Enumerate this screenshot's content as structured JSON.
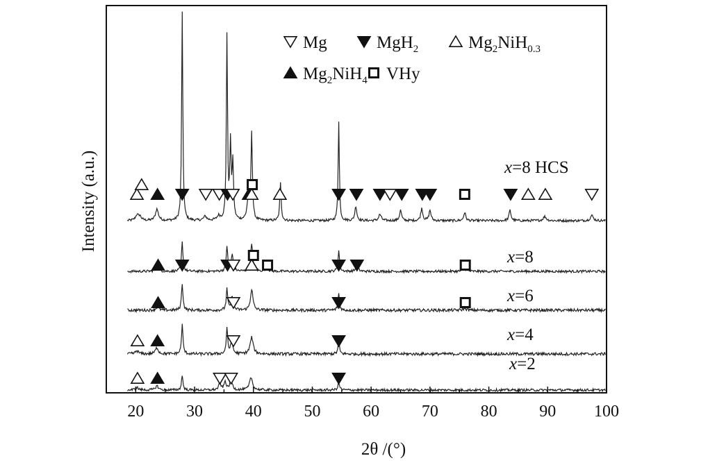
{
  "chart_data": {
    "type": "line",
    "xlabel": "2θ /(°)",
    "ylabel": "Intensity (a.u.)",
    "xlim": [
      15,
      100
    ],
    "xticks": [
      20,
      30,
      40,
      50,
      60,
      70,
      80,
      90,
      100
    ],
    "grid": false,
    "legend": {
      "placement": "top-right",
      "entries": [
        {
          "symbol": "triangle-down-open",
          "label": "Mg"
        },
        {
          "symbol": "triangle-down-filled",
          "label": "MgH",
          "sub": "2"
        },
        {
          "symbol": "triangle-up-open",
          "label": "Mg",
          "sub": "2",
          "label2": "NiH",
          "sub2": "0.3"
        },
        {
          "symbol": "triangle-up-filled",
          "label": "Mg",
          "sub": "2",
          "label2": "NiH",
          "sub2": "4"
        },
        {
          "symbol": "square-open",
          "label": "VHy"
        }
      ]
    },
    "series": [
      {
        "name": "x=8 HCS",
        "prefix": "x",
        "suffix": "=8 HCS",
        "baseline": 0.0,
        "noise": 0.06,
        "peaks": [
          [
            20.2,
            0.25,
            0.3
          ],
          [
            20.7,
            0.2,
            0.3
          ],
          [
            23.6,
            0.55,
            0.3
          ],
          [
            27.9,
            10.0,
            0.12
          ],
          [
            31.8,
            0.2,
            0.3
          ],
          [
            34.1,
            0.2,
            0.3
          ],
          [
            35.5,
            8.8,
            0.12
          ],
          [
            36.1,
            3.5,
            0.14
          ],
          [
            36.5,
            2.6,
            0.14
          ],
          [
            39.1,
            0.9,
            0.25
          ],
          [
            39.7,
            4.2,
            0.14
          ],
          [
            44.6,
            1.8,
            0.14
          ],
          [
            54.5,
            4.8,
            0.12
          ],
          [
            57.4,
            0.7,
            0.2
          ],
          [
            61.5,
            0.3,
            0.25
          ],
          [
            65.0,
            0.5,
            0.2
          ],
          [
            68.6,
            0.6,
            0.2
          ],
          [
            70.0,
            0.5,
            0.2
          ],
          [
            75.9,
            0.4,
            0.2
          ],
          [
            83.6,
            0.5,
            0.2
          ],
          [
            89.5,
            0.2,
            0.3
          ],
          [
            97.5,
            0.25,
            0.3
          ]
        ],
        "markers": [
          {
            "x": 20.2,
            "symbol": "triangle-up-open",
            "row": 0
          },
          {
            "x": 21.0,
            "symbol": "triangle-up-open",
            "row": 1
          },
          {
            "x": 23.7,
            "symbol": "triangle-up-filled",
            "row": 0
          },
          {
            "x": 27.9,
            "symbol": "triangle-down-filled",
            "row": 0
          },
          {
            "x": 31.9,
            "symbol": "triangle-down-open",
            "row": 0
          },
          {
            "x": 34.2,
            "symbol": "triangle-down-open",
            "row": 0
          },
          {
            "x": 35.6,
            "symbol": "triangle-down-filled",
            "row": 0
          },
          {
            "x": 36.5,
            "symbol": "triangle-down-open",
            "row": 0
          },
          {
            "x": 39.2,
            "symbol": "triangle-up-filled",
            "row": 0
          },
          {
            "x": 39.7,
            "symbol": "triangle-up-open",
            "row": 0
          },
          {
            "x": 39.8,
            "symbol": "square-open",
            "row": 1
          },
          {
            "x": 44.5,
            "symbol": "triangle-up-open",
            "row": 0
          },
          {
            "x": 54.5,
            "symbol": "triangle-down-filled",
            "row": 0
          },
          {
            "x": 57.5,
            "symbol": "triangle-down-filled",
            "row": 0
          },
          {
            "x": 61.5,
            "symbol": "triangle-down-filled",
            "row": 0
          },
          {
            "x": 63.2,
            "symbol": "triangle-down-open",
            "row": 0
          },
          {
            "x": 65.2,
            "symbol": "triangle-down-filled",
            "row": 0
          },
          {
            "x": 68.7,
            "symbol": "triangle-down-filled",
            "row": 0
          },
          {
            "x": 70.0,
            "symbol": "triangle-down-filled",
            "row": 0
          },
          {
            "x": 75.9,
            "symbol": "square-open",
            "row": 0
          },
          {
            "x": 83.7,
            "symbol": "triangle-down-filled",
            "row": 0
          },
          {
            "x": 86.7,
            "symbol": "triangle-up-open",
            "row": 0
          },
          {
            "x": 89.6,
            "symbol": "triangle-up-open",
            "row": 0
          },
          {
            "x": 97.5,
            "symbol": "triangle-down-open",
            "row": 0
          }
        ]
      },
      {
        "name": "x=8",
        "prefix": "x",
        "suffix": "=8",
        "baseline": 0.0,
        "noise": 0.06,
        "peaks": [
          [
            23.7,
            0.2,
            0.3
          ],
          [
            27.9,
            1.4,
            0.15
          ],
          [
            35.5,
            1.2,
            0.15
          ],
          [
            36.4,
            0.8,
            0.2
          ],
          [
            39.7,
            1.3,
            0.2
          ],
          [
            42.2,
            0.2,
            0.3
          ],
          [
            54.5,
            1.0,
            0.15
          ],
          [
            57.6,
            0.25,
            0.25
          ],
          [
            75.9,
            0.12,
            0.3
          ]
        ],
        "markers": [
          {
            "x": 23.8,
            "symbol": "triangle-up-filled",
            "row": 0
          },
          {
            "x": 27.9,
            "symbol": "triangle-down-filled",
            "row": 0
          },
          {
            "x": 35.6,
            "symbol": "triangle-down-filled",
            "row": 0
          },
          {
            "x": 36.6,
            "symbol": "triangle-down-open",
            "row": 0
          },
          {
            "x": 39.7,
            "symbol": "triangle-up-open",
            "row": 0
          },
          {
            "x": 40.0,
            "symbol": "square-open",
            "row": 1
          },
          {
            "x": 42.4,
            "symbol": "square-open",
            "row": 0
          },
          {
            "x": 54.5,
            "symbol": "triangle-down-filled",
            "row": 0
          },
          {
            "x": 57.6,
            "symbol": "triangle-down-filled",
            "row": 0
          },
          {
            "x": 76.0,
            "symbol": "square-open",
            "row": 0
          }
        ]
      },
      {
        "name": "x=6",
        "prefix": "x",
        "suffix": "=6",
        "baseline": 0.0,
        "noise": 0.07,
        "peaks": [
          [
            23.7,
            0.15,
            0.3
          ],
          [
            27.9,
            1.3,
            0.15
          ],
          [
            35.5,
            1.0,
            0.15
          ],
          [
            36.4,
            0.7,
            0.2
          ],
          [
            39.7,
            1.0,
            0.25
          ],
          [
            54.5,
            0.8,
            0.15
          ],
          [
            75.9,
            0.1,
            0.3
          ]
        ],
        "markers": [
          {
            "x": 23.8,
            "symbol": "triangle-up-filled",
            "row": 0
          },
          {
            "x": 36.6,
            "symbol": "triangle-down-open",
            "row": 0
          },
          {
            "x": 54.5,
            "symbol": "triangle-down-filled",
            "row": 0
          },
          {
            "x": 76.0,
            "symbol": "square-open",
            "row": 0
          }
        ]
      },
      {
        "name": "x=4",
        "prefix": "x",
        "suffix": "=4",
        "baseline": 0.0,
        "noise": 0.07,
        "peaks": [
          [
            20.2,
            0.15,
            0.3
          ],
          [
            23.6,
            0.3,
            0.3
          ],
          [
            27.9,
            1.4,
            0.15
          ],
          [
            35.5,
            1.2,
            0.15
          ],
          [
            36.3,
            0.7,
            0.2
          ],
          [
            39.7,
            0.8,
            0.3
          ],
          [
            54.5,
            0.6,
            0.15
          ]
        ],
        "markers": [
          {
            "x": 20.3,
            "symbol": "triangle-up-open",
            "row": 0
          },
          {
            "x": 23.7,
            "symbol": "triangle-up-filled",
            "row": 0
          },
          {
            "x": 36.6,
            "symbol": "triangle-down-open",
            "row": 0
          },
          {
            "x": 54.5,
            "symbol": "triangle-down-filled",
            "row": 0
          }
        ]
      },
      {
        "name": "x=2",
        "prefix": "x",
        "suffix": "=2",
        "baseline": 0.0,
        "noise": 0.06,
        "peaks": [
          [
            20.2,
            0.12,
            0.3
          ],
          [
            23.6,
            0.2,
            0.3
          ],
          [
            27.9,
            0.7,
            0.15
          ],
          [
            34.3,
            0.3,
            0.25
          ],
          [
            35.2,
            0.4,
            0.2
          ],
          [
            36.2,
            0.5,
            0.25
          ],
          [
            39.6,
            0.6,
            0.3
          ],
          [
            54.5,
            0.3,
            0.2
          ]
        ],
        "markers": [
          {
            "x": 20.3,
            "symbol": "triangle-up-open",
            "row": 0
          },
          {
            "x": 23.7,
            "symbol": "triangle-up-filled",
            "row": 0
          },
          {
            "x": 34.3,
            "symbol": "triangle-down-open",
            "row": 0
          },
          {
            "x": 36.2,
            "symbol": "triangle-down-open",
            "row": 0
          },
          {
            "x": 54.5,
            "symbol": "triangle-down-filled",
            "row": 0
          }
        ]
      }
    ]
  }
}
